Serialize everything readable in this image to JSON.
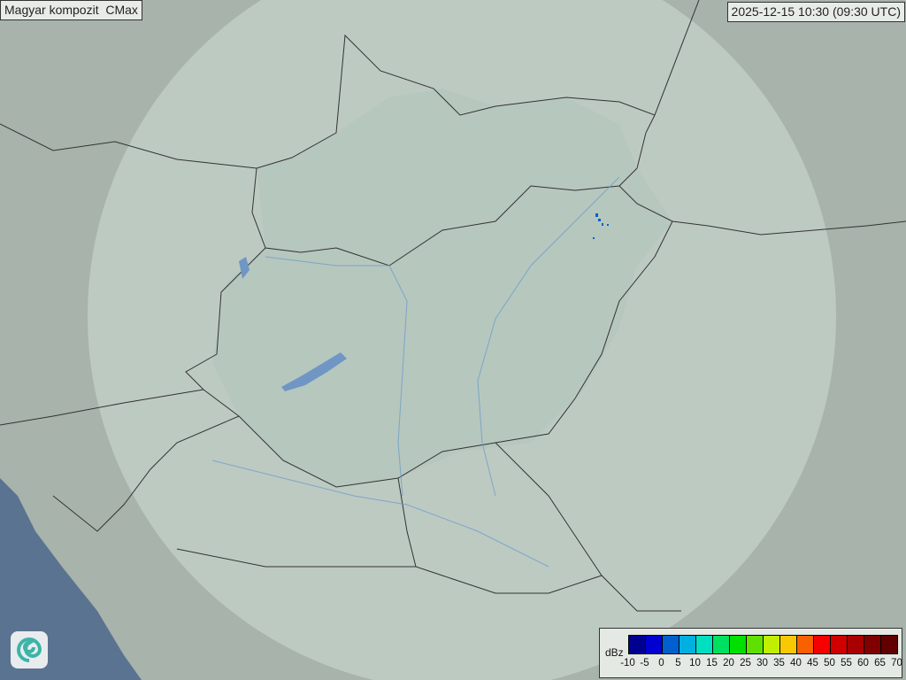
{
  "header": {
    "title": "Magyar kompozit  CMax",
    "timestamp": "2025-12-15 10:30 (09:30 UTC)"
  },
  "legend": {
    "unit": "dBz",
    "ticks": [
      "-10",
      "-5",
      "0",
      "5",
      "10",
      "15",
      "20",
      "25",
      "30",
      "35",
      "40",
      "45",
      "50",
      "55",
      "60",
      "65",
      "70"
    ],
    "colors": [
      "#000090",
      "#0000d0",
      "#0060d0",
      "#00b0e0",
      "#00e0c0",
      "#00e060",
      "#00e000",
      "#60e000",
      "#c0f000",
      "#f8c800",
      "#f86000",
      "#f80000",
      "#d00000",
      "#a80000",
      "#800000",
      "#600000"
    ]
  },
  "logo": {
    "icon": "swirl-logo-icon"
  },
  "colors": {
    "land": "#a9b5ad",
    "radar_coverage": "#c4d2cb",
    "sea": "#5a7391",
    "border": "#333333",
    "river": "#6f9ccc"
  }
}
